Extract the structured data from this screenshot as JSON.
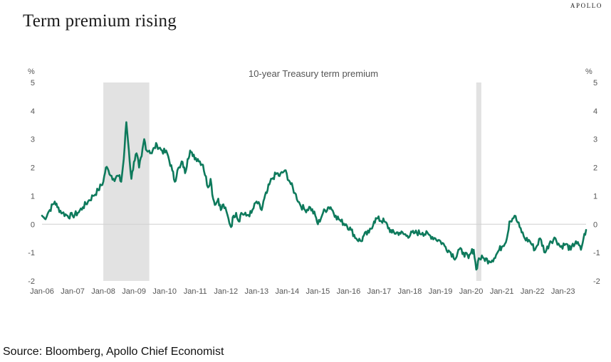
{
  "page": {
    "title": "Term premium rising",
    "brand": "APOLLO",
    "source": "Source: Bloomberg, Apollo Chief Economist"
  },
  "chart_data": {
    "type": "line",
    "title": "10-year Treasury term premium",
    "ylabel_left": "%",
    "ylabel_right": "%",
    "ylim": [
      -2,
      5
    ],
    "yticks": [
      5,
      4,
      3,
      2,
      1,
      0,
      -1,
      -2
    ],
    "xlim": [
      "2006-01",
      "2023-10"
    ],
    "xticks": [
      "Jan-06",
      "Jan-07",
      "Jan-08",
      "Jan-09",
      "Jan-10",
      "Jan-11",
      "Jan-12",
      "Jan-13",
      "Jan-14",
      "Jan-15",
      "Jan-16",
      "Jan-17",
      "Jan-18",
      "Jan-19",
      "Jan-20",
      "Jan-21",
      "Jan-22",
      "Jan-23"
    ],
    "grid": false,
    "zero_line": true,
    "line_color": "#0e7a5c",
    "shade_color": "#e2e2e2",
    "shaded_periods": [
      {
        "start": "2008-01",
        "end": "2009-07"
      },
      {
        "start": "2020-03",
        "end": "2020-05"
      }
    ],
    "series": [
      {
        "x": [
          "2006-01",
          "2006-02",
          "2006-04",
          "2006-06",
          "2006-07",
          "2006-09",
          "2006-11",
          "2007-01",
          "2007-03",
          "2007-05",
          "2007-07",
          "2007-09",
          "2007-11",
          "2008-01",
          "2008-02",
          "2008-03",
          "2008-05",
          "2008-07",
          "2008-08",
          "2008-09",
          "2008-10",
          "2008-11",
          "2008-12",
          "2009-01",
          "2009-02",
          "2009-03",
          "2009-04",
          "2009-05",
          "2009-06",
          "2009-07",
          "2009-08",
          "2009-09",
          "2009-10",
          "2009-12",
          "2010-02",
          "2010-04",
          "2010-05",
          "2010-06",
          "2010-07",
          "2010-08",
          "2010-09",
          "2010-10",
          "2010-11",
          "2010-12",
          "2011-02",
          "2011-04",
          "2011-06",
          "2011-07",
          "2011-08",
          "2011-09",
          "2011-10",
          "2011-11",
          "2011-12",
          "2012-02",
          "2012-03",
          "2012-04",
          "2012-05",
          "2012-06",
          "2012-07",
          "2012-09",
          "2012-11",
          "2013-01",
          "2013-03",
          "2013-04",
          "2013-05",
          "2013-06",
          "2013-07",
          "2013-09",
          "2013-10",
          "2013-12",
          "2014-02",
          "2014-04",
          "2014-06",
          "2014-08",
          "2014-10",
          "2014-12",
          "2015-01",
          "2015-03",
          "2015-05",
          "2015-06",
          "2015-08",
          "2015-10",
          "2015-12",
          "2016-02",
          "2016-04",
          "2016-06",
          "2016-07",
          "2016-09",
          "2016-11",
          "2016-12",
          "2017-03",
          "2017-06",
          "2017-09",
          "2017-12",
          "2018-03",
          "2018-06",
          "2018-09",
          "2018-11",
          "2019-01",
          "2019-03",
          "2019-05",
          "2019-07",
          "2019-08",
          "2019-10",
          "2019-12",
          "2020-01",
          "2020-02",
          "2020-03",
          "2020-04",
          "2020-06",
          "2020-08",
          "2020-10",
          "2020-12",
          "2021-01",
          "2021-03",
          "2021-04",
          "2021-06",
          "2021-08",
          "2021-10",
          "2021-12",
          "2022-02",
          "2022-04",
          "2022-06",
          "2022-08",
          "2022-10",
          "2022-12",
          "2023-02",
          "2023-04",
          "2023-06",
          "2023-08",
          "2023-09",
          "2023-10"
        ],
        "values": [
          0.3,
          0.2,
          0.5,
          0.8,
          0.6,
          0.4,
          0.3,
          0.3,
          0.4,
          0.6,
          0.8,
          1.0,
          1.2,
          1.5,
          2.0,
          1.9,
          1.6,
          1.7,
          1.5,
          2.3,
          3.6,
          2.6,
          1.6,
          2.2,
          2.5,
          2.0,
          2.4,
          3.0,
          2.6,
          2.6,
          2.5,
          2.7,
          2.8,
          2.6,
          2.5,
          1.9,
          1.5,
          1.9,
          2.0,
          2.2,
          1.8,
          2.3,
          2.6,
          2.4,
          2.3,
          2.1,
          1.3,
          1.6,
          0.9,
          0.7,
          0.9,
          0.5,
          0.7,
          0.2,
          -0.1,
          0.3,
          0.4,
          0.1,
          0.4,
          0.3,
          0.4,
          0.8,
          0.5,
          0.9,
          1.1,
          1.4,
          1.6,
          1.8,
          1.7,
          1.9,
          1.5,
          1.1,
          0.7,
          0.5,
          0.6,
          0.3,
          0.0,
          0.4,
          0.6,
          0.6,
          0.3,
          0.1,
          0.0,
          -0.2,
          -0.5,
          -0.6,
          -0.4,
          -0.3,
          0.1,
          0.2,
          0.1,
          -0.3,
          -0.3,
          -0.4,
          -0.3,
          -0.3,
          -0.4,
          -0.5,
          -0.6,
          -0.8,
          -1.0,
          -1.2,
          -0.9,
          -1.0,
          -1.2,
          -1.0,
          -0.9,
          -1.6,
          -1.2,
          -1.2,
          -1.3,
          -1.2,
          -0.9,
          -0.8,
          -0.5,
          0.1,
          0.3,
          -0.1,
          -0.5,
          -0.6,
          -0.9,
          -0.5,
          -1.0,
          -0.6,
          -0.5,
          -0.8,
          -0.7,
          -0.9,
          -0.6,
          -0.9,
          -0.5,
          -0.2
        ]
      }
    ]
  }
}
